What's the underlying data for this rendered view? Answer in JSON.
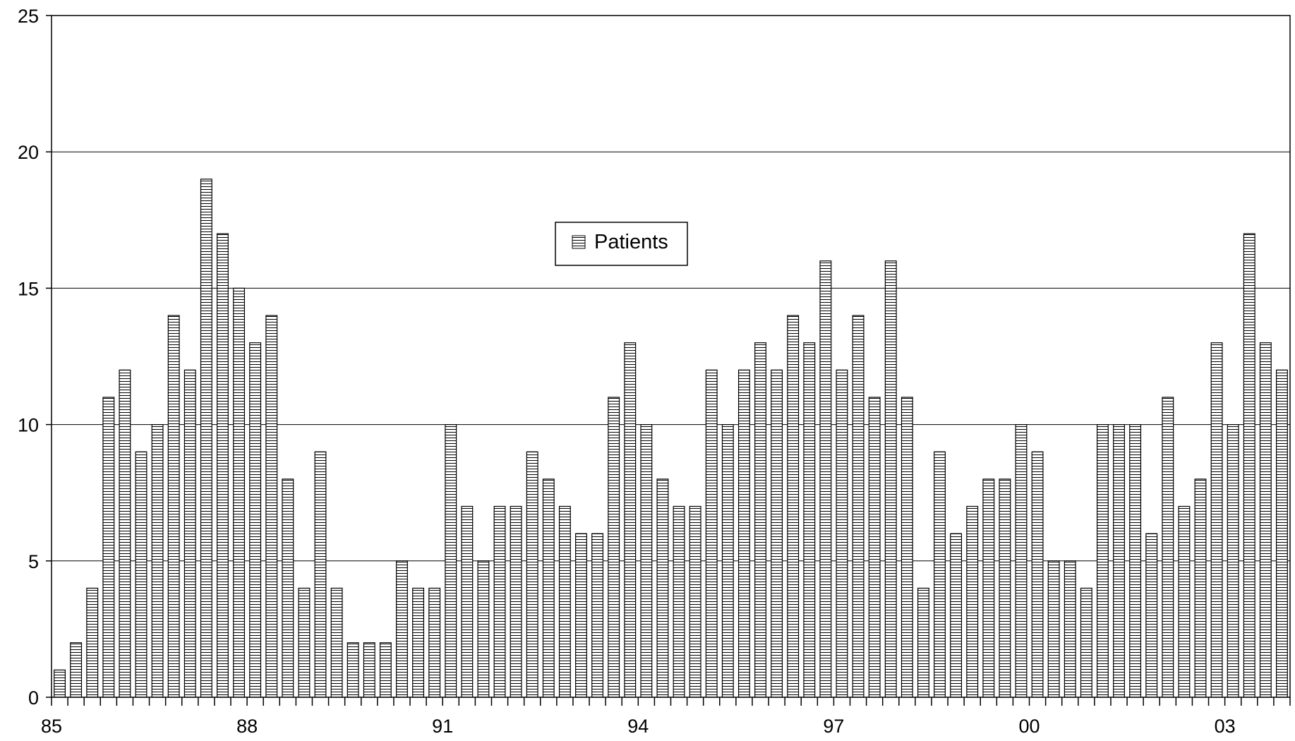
{
  "chart_data": {
    "type": "bar",
    "title": "",
    "xlabel": "",
    "ylabel": "",
    "ylim": [
      0,
      25
    ],
    "yticks": [
      0,
      5,
      10,
      15,
      20,
      25
    ],
    "x_tick_labels": [
      "85",
      "88",
      "91",
      "94",
      "97",
      "00",
      "03"
    ],
    "x_tick_label_every": 12,
    "categories_per_year": 4,
    "grid": true,
    "legend_position": "top-center",
    "fill_pattern": "horizontal-hatch",
    "series": [
      {
        "name": "Patients",
        "values": [
          1,
          2,
          4,
          11,
          12,
          9,
          10,
          14,
          12,
          19,
          17,
          15,
          13,
          14,
          8,
          4,
          9,
          4,
          2,
          2,
          2,
          5,
          4,
          4,
          10,
          7,
          5,
          7,
          7,
          9,
          8,
          7,
          6,
          6,
          11,
          13,
          10,
          8,
          7,
          7,
          12,
          10,
          12,
          13,
          12,
          14,
          13,
          16,
          12,
          14,
          11,
          16,
          11,
          4,
          9,
          6,
          7,
          8,
          8,
          10,
          9,
          5,
          5,
          4,
          10,
          10,
          10,
          6,
          11,
          7,
          8,
          13,
          10,
          17,
          13,
          12
        ]
      }
    ]
  }
}
